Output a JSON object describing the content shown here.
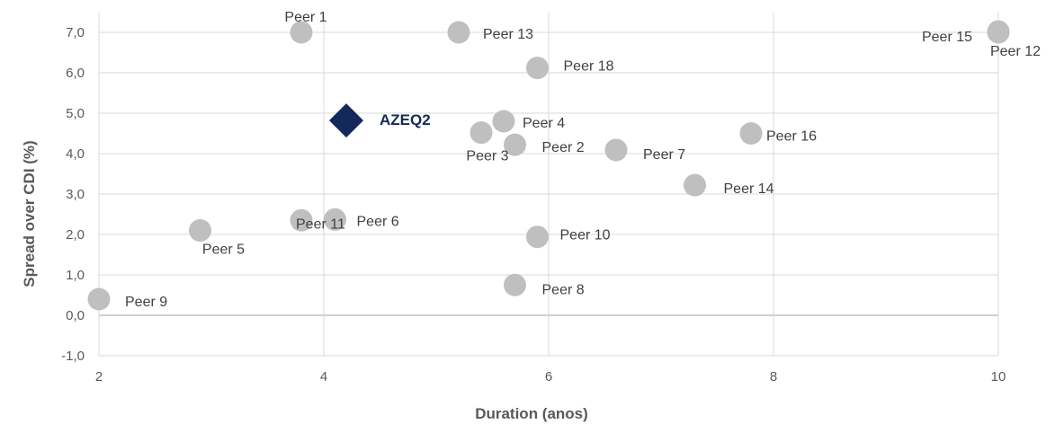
{
  "chart_data": {
    "type": "scatter",
    "xlabel": "Duration (anos)",
    "ylabel": "Spread over CDI (%)",
    "xlim": [
      2,
      10
    ],
    "ylim": [
      -1,
      7.5
    ],
    "x_ticks": [
      "2",
      "4",
      "6",
      "8",
      "10"
    ],
    "y_ticks": [
      "-1,0",
      "0,0",
      "1,0",
      "2,0",
      "3,0",
      "4,0",
      "5,0",
      "6,0",
      "7,0"
    ],
    "grid": true,
    "legend": "none",
    "colors": {
      "peer": "#bfbfbf",
      "highlight": "#14285a",
      "grid": "#d9d9d9",
      "zero_line": "#bfbfbf"
    },
    "highlight": {
      "name": "AZEQ2",
      "x": 4.2,
      "y": 4.82
    },
    "points": [
      {
        "name": "Peer 1",
        "x": 3.8,
        "y": 7.0
      },
      {
        "name": "Peer 2",
        "x": 5.7,
        "y": 4.22
      },
      {
        "name": "Peer 3",
        "x": 5.4,
        "y": 4.52
      },
      {
        "name": "Peer 4",
        "x": 5.6,
        "y": 4.8
      },
      {
        "name": "Peer 5",
        "x": 2.9,
        "y": 2.1
      },
      {
        "name": "Peer 6",
        "x": 4.1,
        "y": 2.37
      },
      {
        "name": "Peer 7",
        "x": 6.6,
        "y": 4.09
      },
      {
        "name": "Peer 8",
        "x": 5.7,
        "y": 0.75
      },
      {
        "name": "Peer 9",
        "x": 2.0,
        "y": 0.4
      },
      {
        "name": "Peer 10",
        "x": 5.9,
        "y": 1.94
      },
      {
        "name": "Peer 11",
        "x": 3.8,
        "y": 2.35
      },
      {
        "name": "Peer 12",
        "x": 10.0,
        "y": 7.02
      },
      {
        "name": "Peer 13",
        "x": 5.2,
        "y": 7.0
      },
      {
        "name": "Peer 14",
        "x": 7.3,
        "y": 3.22
      },
      {
        "name": "Peer 15",
        "x": 10.0,
        "y": 7.0
      },
      {
        "name": "Peer 16",
        "x": 7.8,
        "y": 4.5
      },
      {
        "name": "Peer 18",
        "x": 5.9,
        "y": 6.12
      }
    ]
  }
}
